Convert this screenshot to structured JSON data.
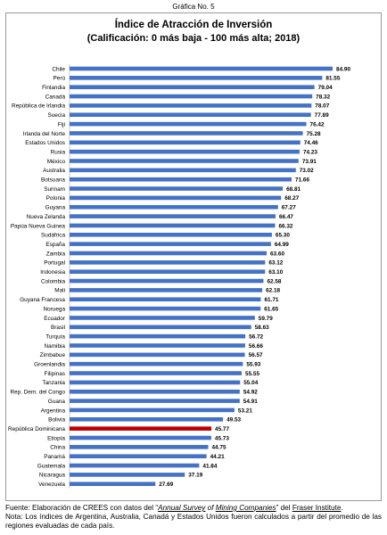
{
  "caption": "Gráfica No. 5",
  "colors": {
    "bar": "#4472c4",
    "highlight": "#c00000"
  },
  "footer": {
    "source_prefix": "Fuente: Elaboración de CREES con datos del “",
    "source_survey_a": "Annual Survey",
    "source_of": " of ",
    "source_survey_b": "Mining Companies",
    "source_mid": "” del ",
    "source_institute": "Fraser Institute",
    "source_end": ".",
    "note": "Nota: Los índices de Argentina, Australia, Canadá y Estados Unidos fueron calculados a partir del promedio de las regiones evaluadas de cada país."
  },
  "chart_data": {
    "type": "bar",
    "orientation": "horizontal",
    "title": "Índice de Atracción de Inversión",
    "subtitle": "(Calificación: 0 más baja - 100 más alta; 2018)",
    "xlim": [
      0,
      100
    ],
    "grid": false,
    "legend": false,
    "highlight_category": "República Dominicana",
    "categories": [
      "Chile",
      "Perú",
      "Finlandia",
      "Canadá",
      "República de Irlandia",
      "Suecia",
      "Fiji",
      "Irlanda del Norte",
      "Estados Unidos",
      "Rusia",
      "México",
      "Australia",
      "Botsuana",
      "Surinam",
      "Polonia",
      "Guyana",
      "Nueva Zelanda",
      "Papúa Nueva Guinea",
      "Sudáfrica",
      "España",
      "Zambia",
      "Portugal",
      "Indonesia",
      "Colombia",
      "Mali",
      "Guyana Francesa",
      "Noruega",
      "Ecuador",
      "Brasil",
      "Turquía",
      "Namibia",
      "Zimbabue",
      "Groenlandia",
      "Filipinas",
      "Tanzania",
      "Rep. Dem. del Congo",
      "Guana",
      "Argentina",
      "Bolivia",
      "República Dominicana",
      "Etiopía",
      "China",
      "Panamá",
      "Guatemala",
      "Nicaragua",
      "Venezuela"
    ],
    "values": [
      84.9,
      81.55,
      79.04,
      78.32,
      78.07,
      77.89,
      76.42,
      75.28,
      74.46,
      74.23,
      73.91,
      73.02,
      71.66,
      68.81,
      68.27,
      67.27,
      66.47,
      66.32,
      65.3,
      64.99,
      63.6,
      63.12,
      63.1,
      62.58,
      62.18,
      61.71,
      61.65,
      59.79,
      58.63,
      56.72,
      56.66,
      56.57,
      55.93,
      55.55,
      55.04,
      54.92,
      54.91,
      53.21,
      49.53,
      45.77,
      45.73,
      44.75,
      44.21,
      41.84,
      37.19,
      27.69
    ],
    "value_labels": [
      "84.90",
      "81.55",
      "79.04",
      "78.32",
      "78.07",
      "77.89",
      "76.42",
      "75.28",
      "74.46",
      "74.23",
      "73.91",
      "73.02",
      "71.66",
      "68.81",
      "68.27",
      "67.27",
      "66.47",
      "66.32",
      "65.30",
      "64.99",
      "63.60",
      "63.12",
      "63.10",
      "62.58",
      "62.18",
      "61.71",
      "61.65",
      "59.79",
      "58.63",
      "56.72",
      "56.66",
      "56.57",
      "55.93",
      "55.55",
      "55.04",
      "54.92",
      "54.91",
      "53.21",
      "49.53",
      "45.77",
      "45.73",
      "44.75",
      "44.21",
      "41.84",
      "37.19",
      "27.69"
    ]
  }
}
